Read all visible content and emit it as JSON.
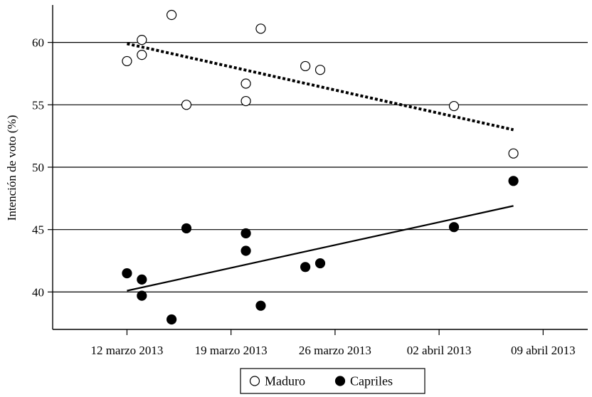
{
  "chart_data": {
    "type": "scatter",
    "title": "",
    "xlabel": "",
    "ylabel": "Intención de voto (%)",
    "x_ticks": [
      {
        "date": "2013-03-12",
        "label": "12 marzo 2013"
      },
      {
        "date": "2013-03-19",
        "label": "19 marzo 2013"
      },
      {
        "date": "2013-03-26",
        "label": "26 marzo 2013"
      },
      {
        "date": "2013-04-02",
        "label": "02 abril 2013"
      },
      {
        "date": "2013-04-09",
        "label": "09 abril 2013"
      }
    ],
    "xlim": [
      "2013-03-07",
      "2013-04-12"
    ],
    "ylim": [
      37,
      63
    ],
    "y_ticks": [
      40,
      45,
      50,
      55,
      60
    ],
    "grid": "horizontal",
    "legend_position": "bottom",
    "series": [
      {
        "name": "Maduro",
        "marker": "hollow-circle",
        "trend": "dotted",
        "points": [
          {
            "x": "2013-03-12",
            "y": 58.5
          },
          {
            "x": "2013-03-13",
            "y": 60.2
          },
          {
            "x": "2013-03-13",
            "y": 59.0
          },
          {
            "x": "2013-03-15",
            "y": 62.2
          },
          {
            "x": "2013-03-16",
            "y": 55.0
          },
          {
            "x": "2013-03-20",
            "y": 56.7
          },
          {
            "x": "2013-03-20",
            "y": 55.3
          },
          {
            "x": "2013-03-21",
            "y": 61.1
          },
          {
            "x": "2013-03-24",
            "y": 58.1
          },
          {
            "x": "2013-03-25",
            "y": 57.8
          },
          {
            "x": "2013-04-03",
            "y": 54.9
          },
          {
            "x": "2013-04-07",
            "y": 51.1
          }
        ],
        "trend_line": [
          {
            "x": "2013-03-12",
            "y": 59.9
          },
          {
            "x": "2013-04-07",
            "y": 53.0
          }
        ]
      },
      {
        "name": "Capriles",
        "marker": "filled-circle",
        "trend": "solid",
        "points": [
          {
            "x": "2013-03-12",
            "y": 41.5
          },
          {
            "x": "2013-03-13",
            "y": 41.0
          },
          {
            "x": "2013-03-13",
            "y": 39.7
          },
          {
            "x": "2013-03-15",
            "y": 37.8
          },
          {
            "x": "2013-03-16",
            "y": 45.1
          },
          {
            "x": "2013-03-20",
            "y": 44.7
          },
          {
            "x": "2013-03-20",
            "y": 43.3
          },
          {
            "x": "2013-03-21",
            "y": 38.9
          },
          {
            "x": "2013-03-24",
            "y": 42.0
          },
          {
            "x": "2013-03-25",
            "y": 42.3
          },
          {
            "x": "2013-04-03",
            "y": 45.2
          },
          {
            "x": "2013-04-07",
            "y": 48.9
          }
        ],
        "trend_line": [
          {
            "x": "2013-03-12",
            "y": 40.1
          },
          {
            "x": "2013-04-07",
            "y": 46.9
          }
        ]
      }
    ]
  }
}
